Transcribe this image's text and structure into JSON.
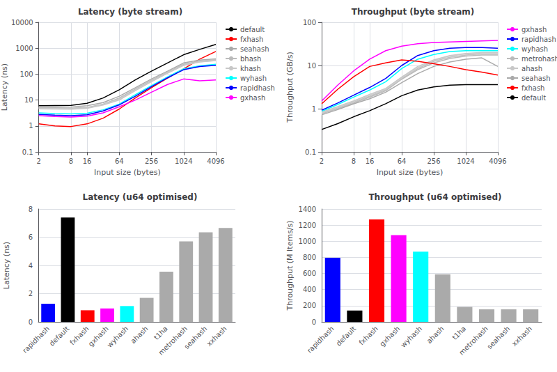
{
  "chart_data": [
    {
      "type": "line",
      "title": "Latency (byte stream)",
      "x_label": "Input size (bytes)",
      "y_label": "Latency (ns)",
      "log": true,
      "grid": true,
      "legend": "right",
      "x": [
        2,
        4,
        8,
        16,
        32,
        64,
        128,
        256,
        512,
        1024,
        2048,
        4096
      ],
      "xlim": [
        2,
        4096
      ],
      "xticks": [
        2,
        8,
        16,
        64,
        256,
        1024,
        4096
      ],
      "ylim": [
        0.1,
        10000
      ],
      "yticks": [
        0.1,
        1,
        10,
        100,
        1000,
        10000
      ],
      "series": [
        {
          "name": "default",
          "color": "black",
          "values": [
            6.0,
            6.1,
            6.2,
            7.5,
            12,
            25,
            60,
            130,
            270,
            560,
            900,
            1400
          ]
        },
        {
          "name": "fxhash",
          "color": "red",
          "values": [
            1.2,
            1.0,
            0.95,
            1.2,
            2.0,
            4.5,
            12,
            30,
            70,
            160,
            380,
            750
          ]
        },
        {
          "name": "seahash",
          "color": "#aaaaaa",
          "values": [
            5.5,
            5.4,
            5.3,
            6.0,
            8.0,
            14,
            30,
            65,
            130,
            270,
            350,
            390
          ]
        },
        {
          "name": "bhash",
          "color": "#bbbbbb",
          "values": [
            5.2,
            5.0,
            4.8,
            5.2,
            7.0,
            12,
            27,
            58,
            120,
            240,
            320,
            360
          ]
        },
        {
          "color": "#c0c0c0",
          "values": [
            5.0,
            4.9,
            4.7,
            5.0,
            6.8,
            11,
            25,
            55,
            115,
            230,
            310,
            345
          ]
        },
        {
          "color": "#d0d0d0",
          "values": [
            4.8,
            4.7,
            4.6,
            4.9,
            6.6,
            10.5,
            24,
            53,
            110,
            220,
            300,
            335
          ]
        },
        {
          "name": "khash",
          "color": "#c8c8c8",
          "values": [
            4.6,
            4.5,
            4.4,
            4.8,
            6.4,
            10,
            23,
            51,
            108,
            218,
            295,
            330
          ]
        },
        {
          "name": "wyhash",
          "color": "cyan",
          "values": [
            3.2,
            3.0,
            2.9,
            3.1,
            4.2,
            7.0,
            16,
            36,
            78,
            160,
            210,
            240
          ]
        },
        {
          "name": "rapidhash",
          "color": "blue",
          "values": [
            2.8,
            2.6,
            2.5,
            2.7,
            3.8,
            6.5,
            14,
            33,
            72,
            148,
            195,
            220
          ]
        },
        {
          "name": "gxhash",
          "color": "magenta",
          "values": [
            2.5,
            2.3,
            2.2,
            2.4,
            3.2,
            5.5,
            10,
            20,
            40,
            65,
            55,
            60
          ]
        }
      ]
    },
    {
      "type": "line",
      "title": "Throughput (byte stream)",
      "x_label": "Input size (bytes)",
      "y_label": "Throughput (GB/s)",
      "log": true,
      "grid": true,
      "legend": "right",
      "x": [
        2,
        4,
        8,
        16,
        32,
        64,
        128,
        256,
        512,
        1024,
        2048,
        4096
      ],
      "xlim": [
        2,
        4096
      ],
      "xticks": [
        2,
        8,
        16,
        64,
        256,
        1024,
        4096
      ],
      "ylim": [
        0.1,
        100
      ],
      "yticks": [
        0.1,
        1,
        10,
        100
      ],
      "series": [
        {
          "name": "gxhash",
          "color": "magenta",
          "values": [
            1.5,
            3.5,
            7.5,
            14,
            22,
            28,
            32,
            34,
            35,
            36,
            37,
            38
          ]
        },
        {
          "name": "rapidhash",
          "color": "blue",
          "values": [
            0.92,
            1.35,
            2.05,
            3.1,
            5.0,
            10,
            17,
            22,
            25,
            26,
            26,
            25
          ]
        },
        {
          "name": "wyhash",
          "color": "cyan",
          "values": [
            0.86,
            1.25,
            1.85,
            2.7,
            4.2,
            8.5,
            14,
            18,
            21,
            22,
            22,
            22
          ]
        },
        {
          "name": "metrohash",
          "color": "#bbbbbb",
          "values": [
            0.76,
            1.0,
            1.35,
            1.85,
            2.6,
            4.8,
            8.0,
            11.5,
            14.5,
            16.5,
            17.5,
            17.5
          ]
        },
        {
          "color": "#c0c0c0",
          "values": [
            0.79,
            1.05,
            1.42,
            1.95,
            2.75,
            5.0,
            8.5,
            12.5,
            15.5,
            17.5,
            18.5,
            18.5
          ]
        },
        {
          "color": "#d0d0d0",
          "values": [
            0.81,
            1.08,
            1.48,
            2.05,
            2.85,
            5.2,
            9.0,
            13,
            16.5,
            18.5,
            19.5,
            19.5
          ]
        },
        {
          "name": "ahash",
          "color": "#c8c8c8",
          "values": [
            0.83,
            1.12,
            1.52,
            2.15,
            2.95,
            5.4,
            9.5,
            13.5,
            17,
            19,
            20,
            20
          ]
        },
        {
          "name": "seahash",
          "color": "#aaaaaa",
          "values": [
            0.72,
            0.95,
            1.3,
            1.7,
            2.4,
            4.0,
            6.5,
            9.5,
            12,
            14,
            15,
            9.5
          ]
        },
        {
          "name": "fxhash",
          "color": "red",
          "values": [
            1.3,
            2.8,
            5.5,
            9.5,
            11.5,
            13.5,
            12.5,
            11,
            9.5,
            8.0,
            7.0,
            6.0
          ]
        },
        {
          "name": "default",
          "color": "black",
          "values": [
            0.33,
            0.45,
            0.65,
            0.9,
            1.3,
            2.0,
            2.7,
            3.2,
            3.5,
            3.6,
            3.6,
            3.6
          ]
        }
      ]
    },
    {
      "type": "bar",
      "title": "Latency (u64 optimised)",
      "y_label": "Latency (ns)",
      "grid": true,
      "categories": [
        "rapidhash",
        "default",
        "fxhash",
        "gxhash",
        "wyhash",
        "ahash",
        "t1ha",
        "metrohash",
        "seahash",
        "xxhash"
      ],
      "values": [
        1.28,
        7.4,
        0.82,
        0.95,
        1.12,
        1.7,
        3.55,
        5.7,
        6.35,
        6.65
      ],
      "colors": [
        "blue",
        "black",
        "red",
        "magenta",
        "cyan",
        "#aaaaaa",
        "#aaaaaa",
        "#aaaaaa",
        "#aaaaaa",
        "#aaaaaa"
      ],
      "ylim": [
        0,
        8
      ],
      "yticks": [
        0,
        2,
        4,
        6,
        8
      ]
    },
    {
      "type": "bar",
      "title": "Throughput (u64 optimised)",
      "y_label": "Throughput (M Items/s)",
      "grid": true,
      "categories": [
        "rapidhash",
        "default",
        "fxhash",
        "gxhash",
        "wyhash",
        "ahash",
        "t1ha",
        "metrohash",
        "seahash",
        "xxhash"
      ],
      "values": [
        795,
        140,
        1270,
        1075,
        870,
        590,
        185,
        155,
        155,
        155
      ],
      "colors": [
        "blue",
        "black",
        "red",
        "magenta",
        "cyan",
        "#aaaaaa",
        "#aaaaaa",
        "#aaaaaa",
        "#aaaaaa",
        "#aaaaaa"
      ],
      "ylim": [
        0,
        1400
      ],
      "yticks": [
        0,
        200,
        400,
        600,
        800,
        1000,
        1200,
        1400
      ]
    }
  ]
}
